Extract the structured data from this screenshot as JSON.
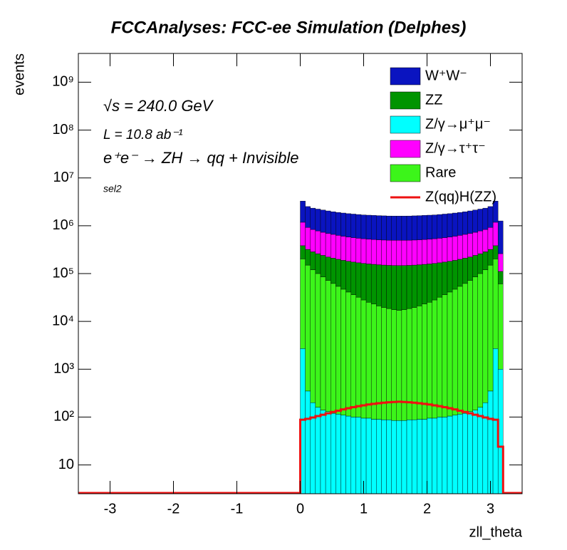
{
  "chart_data": {
    "type": "stacked-histogram",
    "title": "FCCAnalyses: FCC-ee Simulation (Delphes)",
    "x_label": "zll_theta",
    "y_label": "events",
    "annotations": [
      "√s = 240.0 GeV",
      "L = 10.8 ab⁻¹",
      "e⁺e⁻ → ZH → qq + Invisible",
      "sel2"
    ],
    "log_y": true,
    "legend": "top-right",
    "xlim": [
      -3.5,
      3.5
    ],
    "xticks": [
      -3,
      -2,
      -1,
      0,
      1,
      2,
      3
    ],
    "ylim": [
      2.5,
      4000000000
    ],
    "yticks": [
      10,
      {
        "value": 100,
        "label": "10²"
      },
      {
        "value": 1000,
        "label": "10³"
      },
      {
        "value": 10000,
        "label": "10⁴"
      },
      {
        "value": 100000,
        "label": "10⁵"
      },
      {
        "value": 1000000,
        "label": "10⁶"
      },
      {
        "value": 10000000,
        "label": "10⁷"
      },
      {
        "value": 100000000,
        "label": "10⁸"
      },
      {
        "value": 1000000000,
        "label": "10⁹"
      }
    ],
    "bins": [
      0,
      0.08,
      0.16,
      0.24,
      0.32,
      0.4,
      0.48,
      0.56,
      0.64,
      0.72,
      0.8,
      0.88,
      0.96,
      1.04,
      1.12,
      1.2,
      1.28,
      1.36,
      1.44,
      1.52,
      1.6,
      1.68,
      1.76,
      1.84,
      1.92,
      2,
      2.08,
      2.16,
      2.24,
      2.32,
      2.4,
      2.48,
      2.56,
      2.64,
      2.72,
      2.8,
      2.88,
      2.96,
      3.04,
      3.12,
      3.2
    ],
    "stack_order": [
      2,
      4,
      1,
      3,
      0
    ],
    "series": [
      {
        "name": "W⁺W⁻",
        "color": "#0a14c0",
        "values": [
          2100000,
          1600000,
          1500000,
          1450000,
          1400000,
          1350000,
          1300000,
          1270000,
          1240000,
          1210000,
          1190000,
          1170000,
          1150000,
          1140000,
          1130000,
          1120000,
          1110000,
          1100000,
          1100000,
          1100000,
          1100000,
          1100000,
          1110000,
          1120000,
          1130000,
          1140000,
          1150000,
          1170000,
          1190000,
          1210000,
          1240000,
          1270000,
          1300000,
          1350000,
          1400000,
          1450000,
          1500000,
          1600000,
          2100000,
          1000000
        ]
      },
      {
        "name": "ZZ",
        "color": "#009400",
        "values": [
          180000,
          170000,
          165000,
          160000,
          155000,
          150000,
          148000,
          145000,
          142000,
          140000,
          138000,
          136000,
          135000,
          134000,
          133000,
          132000,
          131000,
          130000,
          130000,
          130000,
          130000,
          130000,
          131000,
          132000,
          133000,
          134000,
          135000,
          136000,
          138000,
          140000,
          142000,
          145000,
          148000,
          150000,
          155000,
          160000,
          165000,
          170000,
          180000,
          50000
        ]
      },
      {
        "name": "Z/γ→μ⁺μ⁻",
        "color": "#00ffff",
        "values": [
          2700,
          350,
          200,
          160,
          140,
          130,
          120,
          115,
          110,
          105,
          100,
          100,
          95,
          95,
          90,
          90,
          88,
          88,
          85,
          85,
          85,
          88,
          88,
          90,
          90,
          95,
          95,
          100,
          100,
          105,
          110,
          115,
          120,
          130,
          140,
          160,
          200,
          350,
          2700,
          1000
        ]
      },
      {
        "name": "Z/γ→τ⁺τ⁻",
        "color": "#ff00ff",
        "values": [
          800000,
          600000,
          550000,
          520000,
          490000,
          470000,
          450000,
          430000,
          415000,
          400000,
          390000,
          380000,
          372000,
          365000,
          360000,
          355000,
          352000,
          350000,
          350000,
          350000,
          350000,
          350000,
          352000,
          355000,
          360000,
          365000,
          372000,
          380000,
          390000,
          400000,
          415000,
          430000,
          450000,
          470000,
          490000,
          520000,
          550000,
          600000,
          800000,
          150000
        ]
      },
      {
        "name": "Rare",
        "color": "#3cf51a",
        "values": [
          200000,
          150000,
          120000,
          100000,
          85000,
          72000,
          62000,
          54000,
          47000,
          41000,
          36000,
          32000,
          28000,
          25000,
          23000,
          21000,
          19500,
          18500,
          17500,
          17000,
          17500,
          18500,
          19500,
          21000,
          23000,
          25000,
          28000,
          32000,
          36000,
          41000,
          47000,
          54000,
          62000,
          72000,
          85000,
          100000,
          120000,
          150000,
          200000,
          60000
        ]
      },
      {
        "name": "Z(qq)H(ZZ)",
        "color": "#ee1111",
        "line": true,
        "values": [
          88,
          92,
          98,
          105,
          112,
          120,
          128,
          136,
          145,
          153,
          161,
          169,
          176,
          183,
          189,
          195,
          200,
          204,
          207,
          209,
          207,
          204,
          200,
          195,
          189,
          183,
          176,
          169,
          161,
          153,
          145,
          136,
          128,
          120,
          112,
          105,
          98,
          92,
          88,
          24
        ]
      }
    ]
  }
}
